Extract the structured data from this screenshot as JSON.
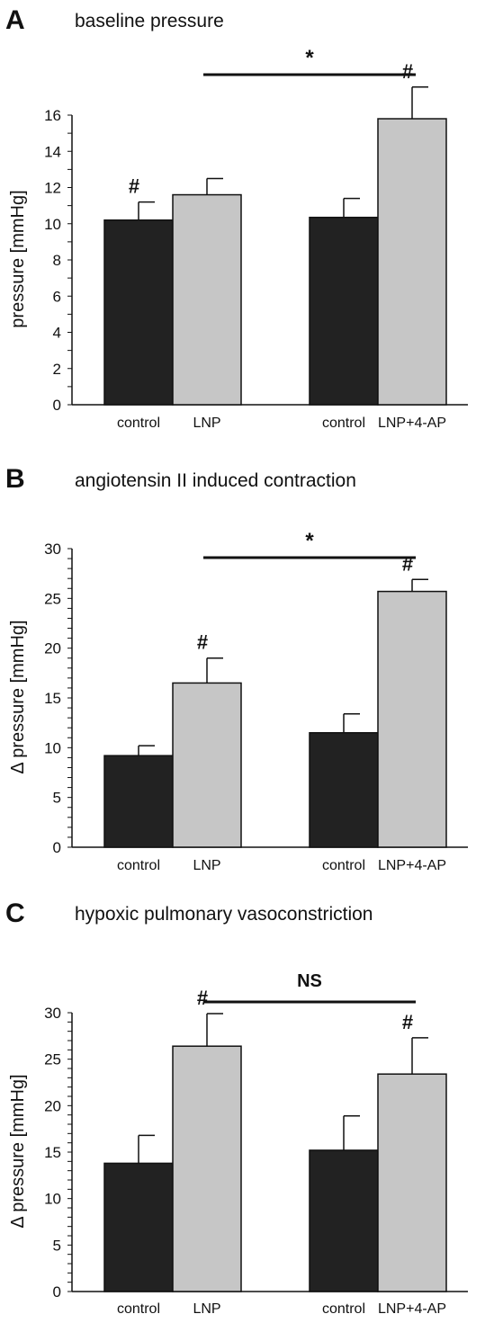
{
  "chart_data": [
    {
      "type": "bar",
      "panel_letter": "A",
      "title": "baseline pressure",
      "ylabel": "pressure [mmHg]",
      "ylim": [
        0,
        16
      ],
      "y_ticks": [
        "0",
        "2",
        "4",
        "6",
        "8",
        "10",
        "12",
        "14",
        "16"
      ],
      "categories": [
        "control",
        "LNP",
        "control",
        "LNP+4-AP"
      ],
      "values": [
        10.2,
        11.6,
        10.35,
        15.8
      ],
      "errors": [
        1.0,
        0.9,
        1.05,
        1.75
      ],
      "annotations": [
        "#",
        "",
        "",
        "#"
      ],
      "comparison": {
        "from": 1,
        "to": 3,
        "label": "*"
      },
      "colors": [
        "#222222",
        "#c6c6c6",
        "#222222",
        "#c6c6c6"
      ]
    },
    {
      "type": "bar",
      "panel_letter": "B",
      "title": "angiotensin II induced contraction",
      "ylabel": "Δ pressure [mmHg]",
      "ylim": [
        0,
        30
      ],
      "y_ticks": [
        "0",
        "5",
        "10",
        "15",
        "20",
        "25",
        "30"
      ],
      "categories": [
        "control",
        "LNP",
        "control",
        "LNP+4-AP"
      ],
      "values": [
        9.2,
        16.5,
        11.5,
        25.7
      ],
      "errors": [
        1.0,
        2.5,
        1.9,
        1.2
      ],
      "annotations": [
        "",
        "#",
        "",
        "#"
      ],
      "comparison": {
        "from": 1,
        "to": 3,
        "label": "*"
      },
      "colors": [
        "#222222",
        "#c6c6c6",
        "#222222",
        "#c6c6c6"
      ]
    },
    {
      "type": "bar",
      "panel_letter": "C",
      "title": "hypoxic pulmonary vasoconstriction",
      "ylabel": "Δ pressure [mmHg]",
      "ylim": [
        0,
        30
      ],
      "y_ticks": [
        "0",
        "5",
        "10",
        "15",
        "20",
        "25",
        "30"
      ],
      "categories": [
        "control",
        "LNP",
        "control",
        "LNP+4-AP"
      ],
      "values": [
        13.8,
        26.4,
        15.2,
        23.4
      ],
      "errors": [
        3.0,
        3.5,
        3.7,
        3.9
      ],
      "annotations": [
        "",
        "#",
        "",
        "#"
      ],
      "comparison": {
        "from": 1,
        "to": 3,
        "label": "NS"
      },
      "colors": [
        "#222222",
        "#c6c6c6",
        "#222222",
        "#c6c6c6"
      ]
    }
  ]
}
